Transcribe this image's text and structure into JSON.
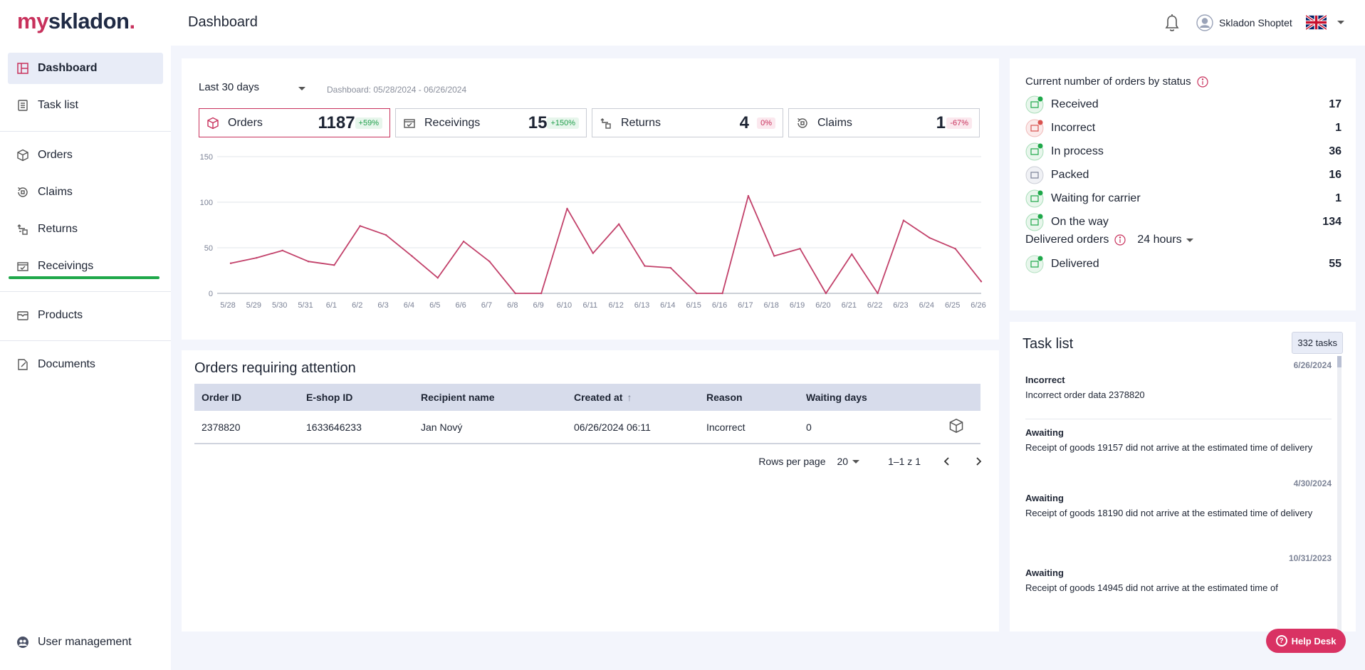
{
  "brand": {
    "logo_my": "my",
    "logo_rest": "skladon",
    "logo_dot": "."
  },
  "header": {
    "title": "Dashboard",
    "user_name": "Skladon Shoptet",
    "language": "EN"
  },
  "sidebar": {
    "items": [
      {
        "label": "Dashboard",
        "icon": "dashboard-icon"
      },
      {
        "label": "Task list",
        "icon": "task-list-icon"
      },
      {
        "label": "Orders",
        "icon": "box-icon"
      },
      {
        "label": "Claims",
        "icon": "claims-icon"
      },
      {
        "label": "Returns",
        "icon": "returns-icon"
      },
      {
        "label": "Receivings",
        "icon": "receivings-icon"
      },
      {
        "label": "Products",
        "icon": "products-icon"
      },
      {
        "label": "Documents",
        "icon": "documents-icon"
      },
      {
        "label": "User management",
        "icon": "users-icon"
      }
    ]
  },
  "filter": {
    "range": "Last 30 days",
    "range_label": "Dashboard: 05/28/2024 - 06/26/2024"
  },
  "kpis": [
    {
      "name": "Orders",
      "value": "1187",
      "change": "+59%",
      "trend": "up"
    },
    {
      "name": "Receivings",
      "value": "15",
      "change": "+150%",
      "trend": "up"
    },
    {
      "name": "Returns",
      "value": "4",
      "change": "0%",
      "trend": "neutral"
    },
    {
      "name": "Claims",
      "value": "1",
      "change": "-67%",
      "trend": "down"
    }
  ],
  "chart_data": {
    "type": "line",
    "title": "",
    "xlabel": "",
    "ylabel": "",
    "ylim": [
      0,
      150
    ],
    "yticks": [
      0,
      50,
      100,
      150
    ],
    "grid": true,
    "color": "#c2416a",
    "x": [
      "5/28",
      "5/29",
      "5/30",
      "5/31",
      "6/1",
      "6/2",
      "6/3",
      "6/4",
      "6/5",
      "6/6",
      "6/7",
      "6/8",
      "6/9",
      "6/10",
      "6/11",
      "6/12",
      "6/13",
      "6/14",
      "6/15",
      "6/16",
      "6/17",
      "6/18",
      "6/19",
      "6/20",
      "6/21",
      "6/22",
      "6/23",
      "6/24",
      "6/25",
      "6/26"
    ],
    "series": [
      {
        "name": "Orders",
        "values": [
          33,
          39,
          47,
          35,
          31,
          74,
          64,
          41,
          17,
          57,
          35,
          0,
          0,
          93,
          44,
          76,
          30,
          28,
          0,
          0,
          107,
          41,
          49,
          0,
          43,
          0,
          80,
          61,
          49,
          13
        ]
      }
    ]
  },
  "attention": {
    "title": "Orders requiring attention",
    "columns": [
      "Order ID",
      "E-shop ID",
      "Recipient name",
      "Created at",
      "Reason",
      "Waiting days"
    ],
    "rows": [
      {
        "order_id": "2378820",
        "eshop_id": "1633646233",
        "recipient": "Jan Nový",
        "created": "06/26/2024 06:11",
        "reason": "Incorrect",
        "waiting": "0"
      }
    ],
    "rows_per_page_label": "Rows per page",
    "rows_per_page": "20",
    "range": "1–1 z 1"
  },
  "status": {
    "title": "Current number of orders by status",
    "items": [
      {
        "label": "Received",
        "count": "17",
        "color": "#1fa84a"
      },
      {
        "label": "Incorrect",
        "count": "1",
        "color": "#d9534f"
      },
      {
        "label": "In process",
        "count": "36",
        "color": "#1fa84a"
      },
      {
        "label": "Packed",
        "count": "16",
        "color": "#7b8296"
      },
      {
        "label": "Waiting for carrier",
        "count": "1",
        "color": "#1fa84a"
      },
      {
        "label": "On the way",
        "count": "134",
        "color": "#1fa84a"
      }
    ],
    "delivered_label": "Delivered orders",
    "delivered_period": "24 hours",
    "delivered": {
      "label": "Delivered",
      "count": "55"
    }
  },
  "tasks": {
    "title": "Task list",
    "count": "332 tasks",
    "items": [
      {
        "date": "6/26/2024",
        "type": "Incorrect",
        "desc": "Incorrect order data 2378820"
      },
      {
        "date": "",
        "type": "Awaiting",
        "desc": "Receipt of goods 19157 did not arrive at the estimated time of delivery"
      },
      {
        "date": "4/30/2024",
        "type": "Awaiting",
        "desc": "Receipt of goods 18190 did not arrive at the estimated time of delivery"
      },
      {
        "date": "10/31/2023",
        "type": "Awaiting",
        "desc": "Receipt of goods 14945 did not arrive at the estimated time of"
      }
    ]
  },
  "helpdesk": {
    "label": "Help Desk"
  }
}
